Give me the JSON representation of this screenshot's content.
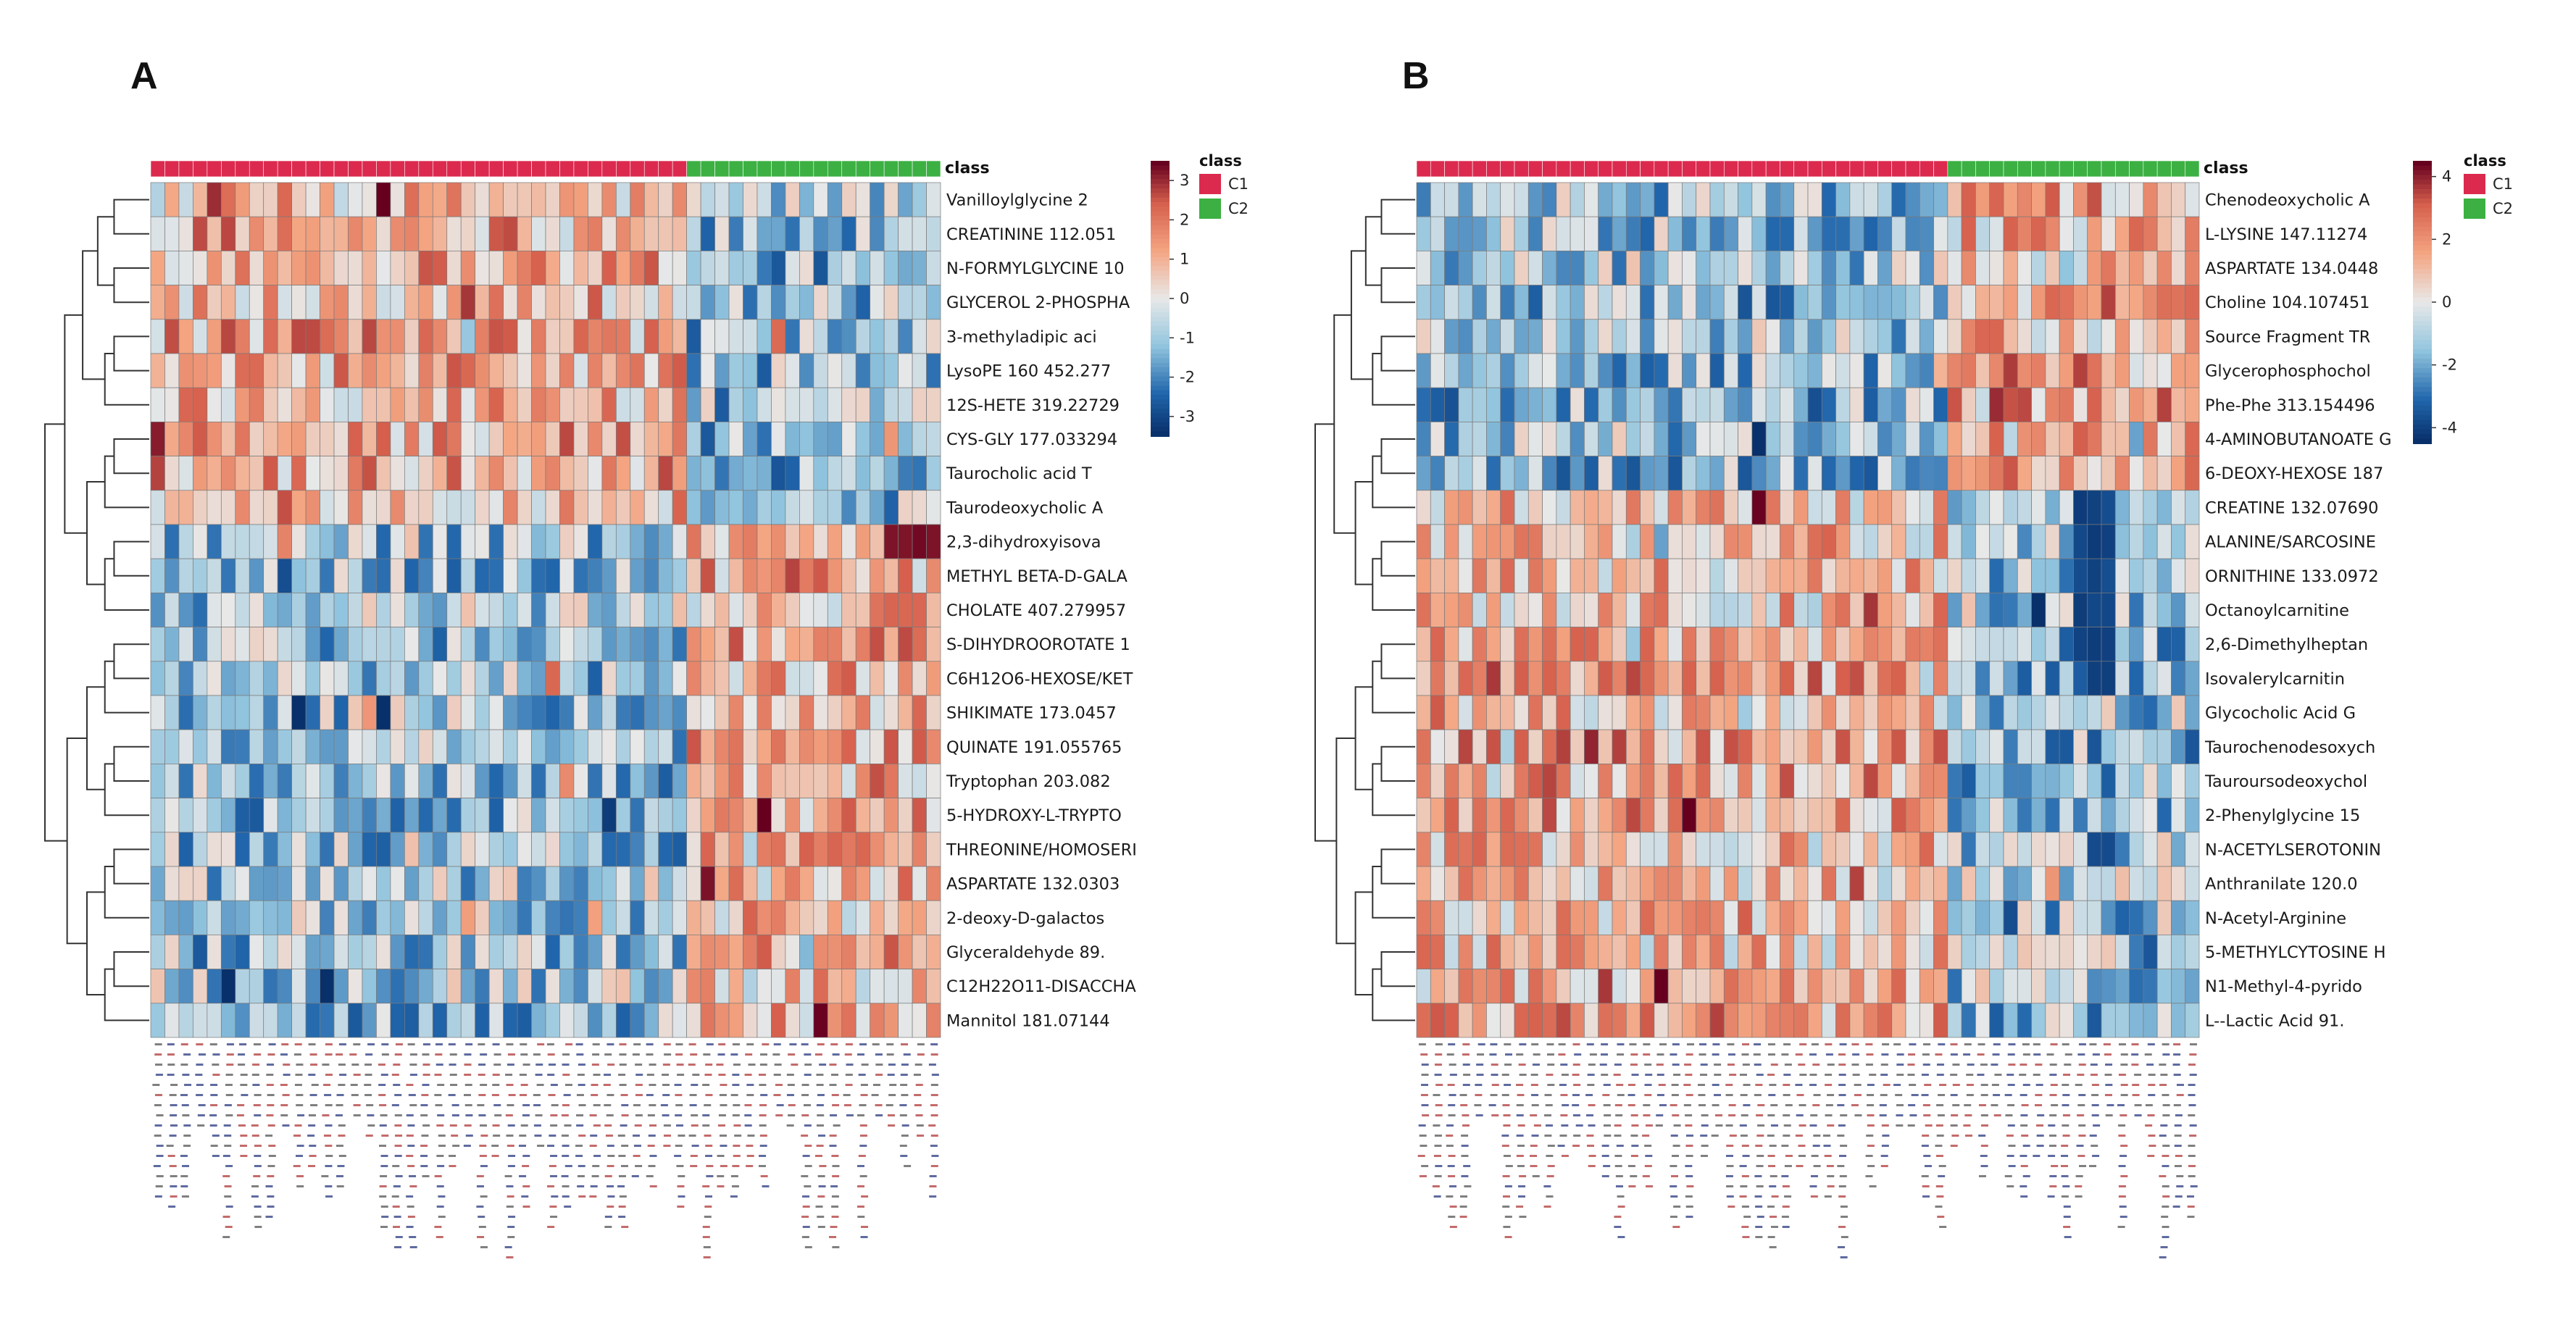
{
  "chart_data": [
    {
      "type": "heatmap",
      "panel_label": "A",
      "class_header": "class",
      "legend_title": "class",
      "legend_entries": [
        {
          "name": "C1",
          "color": "#dc2a4f"
        },
        {
          "name": "C2",
          "color": "#3cb043"
        }
      ],
      "colorbar_ticks": [
        "3",
        "2",
        "1",
        "0",
        "-1",
        "-2",
        "-3"
      ],
      "colorbar_range": [
        -3.5,
        3.5
      ],
      "n_samples_c1": 38,
      "n_samples_c2": 18,
      "rows": [
        "Vanilloylglycine 2",
        "CREATININE 112.051",
        "N-FORMYLGLYCINE 10",
        "GLYCEROL 2-PHOSPHA",
        "3-methyladipic aci",
        "LysoPE 160 452.277",
        "12S-HETE 319.22729",
        "CYS-GLY 177.033294",
        "Taurocholic acid T",
        "Taurodeoxycholic A",
        "2,3-dihydroxyisova",
        "METHYL BETA-D-GALA",
        "CHOLATE 407.279957",
        "S-DIHYDROOROTATE 1",
        "C6H12O6-HEXOSE/KET",
        "SHIKIMATE 173.0457",
        "QUINATE 191.055765",
        "Tryptophan 203.082",
        "5-HYDROXY-L-TRYPTO",
        "THREONINE/HOMOSERI",
        "ASPARTATE 132.0303",
        "2-deoxy-D-galactos",
        "Glyceraldehyde 89.",
        "C12H22O11-DISACCHA",
        "Mannitol 181.07144"
      ],
      "value_pattern": "Top 10 metabolites generally elevated (red) in C1 samples and lower (blue) in C2; bottom 15 metabolites generally lower in C1 and elevated in C2, with a strong red block for 2,3-dihydroxyisova at the right edge."
    },
    {
      "type": "heatmap",
      "panel_label": "B",
      "class_header": "class",
      "legend_title": "class",
      "legend_entries": [
        {
          "name": "C1",
          "color": "#dc2a4f"
        },
        {
          "name": "C2",
          "color": "#3cb043"
        }
      ],
      "colorbar_ticks": [
        "4",
        "2",
        "0",
        "-2",
        "-4"
      ],
      "colorbar_range": [
        -4.5,
        4.5
      ],
      "n_samples_c1": 38,
      "n_samples_c2": 18,
      "rows": [
        "Chenodeoxycholic A",
        "L-LYSINE 147.11274",
        "ASPARTATE 134.0448",
        "Choline 104.107451",
        "Source Fragment TR",
        "Glycerophosphochol",
        "Phe-Phe 313.154496",
        "4-AMINOBUTANOATE G",
        "6-DEOXY-HEXOSE 187",
        "CREATINE 132.07690",
        "ALANINE/SARCOSINE",
        "ORNITHINE 133.0972",
        "Octanoylcarnitine",
        "2,6-Dimethylheptan",
        "Isovalerylcarnitin",
        "Glycocholic Acid G",
        "Taurochenodesoxych",
        "Tauroursodeoxychol",
        "2-Phenylglycine 15",
        "N-ACETYLSEROTONIN",
        "Anthranilate 120.0",
        "N-Acetyl-Arginine",
        "5-METHYLCYTOSINE H",
        "N1-Methyl-4-pyrido",
        "L--Lactic Acid 91."
      ],
      "value_pattern": "Top 9 metabolites mostly lower (blue) in C1 and higher in C2; bottom 16 metabolites mostly elevated (red) in C1 and lower (blue) in C2, with a dark blue band near the right side of C2."
    }
  ]
}
